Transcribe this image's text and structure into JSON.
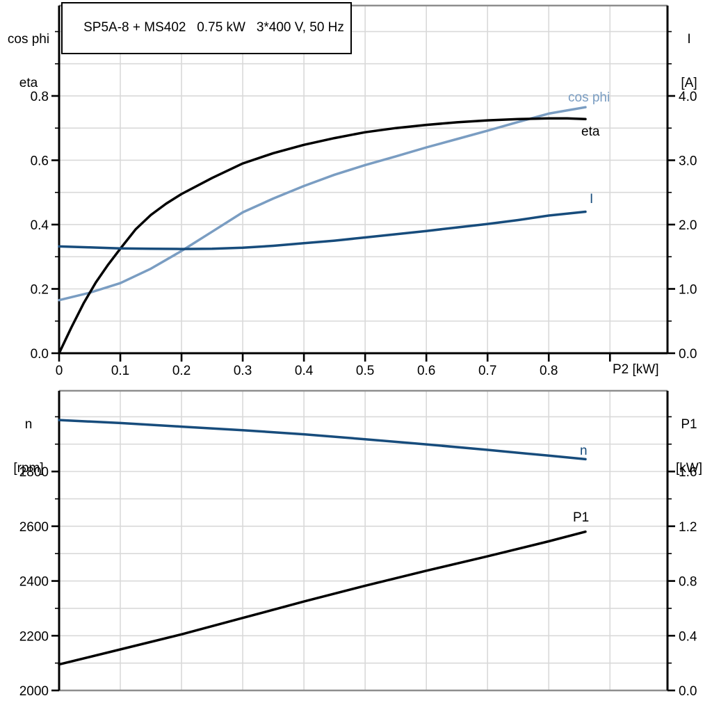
{
  "title": "SP5A-8 + MS402   0.75 kW   3*400 V, 50 Hz",
  "colors": {
    "black": "#000000",
    "light_blue": "#7a9dc2",
    "dark_blue": "#174c7c",
    "grid": "#d9d9d9",
    "frame": "#8e8e8e",
    "background": "#ffffff"
  },
  "chart_data": [
    {
      "type": "line",
      "id": "electrical-curves",
      "xlabel": "P2 [kW]",
      "xlim": [
        0,
        0.994
      ],
      "x_grid_values": [
        0.1,
        0.2,
        0.3,
        0.4,
        0.5,
        0.6,
        0.7,
        0.8,
        0.9
      ],
      "x_tick_values": [
        0,
        0.1,
        0.2,
        0.3,
        0.4,
        0.5,
        0.6,
        0.7,
        0.8,
        0.9
      ],
      "x_tick_labels": [
        "0",
        "0.1",
        "0.2",
        "0.3",
        "0.4",
        "0.5",
        "0.6",
        "0.7",
        "0.8",
        ""
      ],
      "left_axis": {
        "label_lines": [
          "cos phi",
          "eta"
        ],
        "range": [
          0,
          1.081
        ],
        "tick_values": [
          0,
          0.2,
          0.4,
          0.6,
          0.8
        ],
        "tick_labels": [
          "0.0",
          "0.2",
          "0.4",
          "0.6",
          "0.8"
        ],
        "minor_tick_values": [
          0.1,
          0.3,
          0.5,
          0.7,
          0.9,
          1.0
        ],
        "grid_values": [
          0.1,
          0.2,
          0.3,
          0.4,
          0.5,
          0.6,
          0.7,
          0.8,
          0.9,
          1.0
        ]
      },
      "right_axis": {
        "label_lines": [
          "I",
          "[A]"
        ],
        "range": [
          0,
          5.405
        ],
        "tick_values": [
          0,
          1,
          2,
          3,
          4
        ],
        "tick_labels": [
          "0.0",
          "1.0",
          "2.0",
          "3.0",
          "4.0"
        ],
        "minor_tick_values": [
          0.5,
          1.5,
          2.5,
          3.5,
          4.5,
          5.0
        ]
      },
      "grid": true,
      "legend_position": "inline-labels",
      "series": [
        {
          "name": "cos phi",
          "axis": "left",
          "color_key": "light_blue",
          "points": [
            [
              0,
              0.165
            ],
            [
              0.05,
              0.188
            ],
            [
              0.1,
              0.218
            ],
            [
              0.15,
              0.263
            ],
            [
              0.2,
              0.318
            ],
            [
              0.25,
              0.378
            ],
            [
              0.3,
              0.438
            ],
            [
              0.35,
              0.481
            ],
            [
              0.4,
              0.52
            ],
            [
              0.45,
              0.555
            ],
            [
              0.5,
              0.585
            ],
            [
              0.55,
              0.612
            ],
            [
              0.6,
              0.64
            ],
            [
              0.65,
              0.666
            ],
            [
              0.7,
              0.692
            ],
            [
              0.75,
              0.719
            ],
            [
              0.8,
              0.745
            ],
            [
              0.86,
              0.765
            ]
          ]
        },
        {
          "name": "eta",
          "axis": "left",
          "color_key": "black",
          "points": [
            [
              0,
              0
            ],
            [
              0.02,
              0.08
            ],
            [
              0.04,
              0.155
            ],
            [
              0.06,
              0.22
            ],
            [
              0.08,
              0.275
            ],
            [
              0.1,
              0.325
            ],
            [
              0.125,
              0.385
            ],
            [
              0.15,
              0.43
            ],
            [
              0.175,
              0.465
            ],
            [
              0.2,
              0.495
            ],
            [
              0.25,
              0.545
            ],
            [
              0.3,
              0.59
            ],
            [
              0.35,
              0.622
            ],
            [
              0.4,
              0.648
            ],
            [
              0.45,
              0.669
            ],
            [
              0.5,
              0.687
            ],
            [
              0.55,
              0.7
            ],
            [
              0.6,
              0.71
            ],
            [
              0.65,
              0.718
            ],
            [
              0.7,
              0.724
            ],
            [
              0.75,
              0.728
            ],
            [
              0.8,
              0.73
            ],
            [
              0.83,
              0.73
            ],
            [
              0.86,
              0.728
            ]
          ]
        },
        {
          "name": "I",
          "axis": "right",
          "color_key": "dark_blue",
          "points": [
            [
              0,
              1.66
            ],
            [
              0.05,
              1.645
            ],
            [
              0.1,
              1.63
            ],
            [
              0.15,
              1.625
            ],
            [
              0.2,
              1.62
            ],
            [
              0.25,
              1.625
            ],
            [
              0.3,
              1.64
            ],
            [
              0.35,
              1.67
            ],
            [
              0.4,
              1.71
            ],
            [
              0.45,
              1.75
            ],
            [
              0.5,
              1.8
            ],
            [
              0.55,
              1.85
            ],
            [
              0.6,
              1.9
            ],
            [
              0.65,
              1.955
            ],
            [
              0.7,
              2.01
            ],
            [
              0.75,
              2.07
            ],
            [
              0.8,
              2.14
            ],
            [
              0.86,
              2.2
            ]
          ]
        }
      ]
    },
    {
      "type": "line",
      "id": "mechanical-curves",
      "xlabel": "",
      "xlim": [
        0,
        0.994
      ],
      "x_grid_values": [
        0.1,
        0.2,
        0.3,
        0.4,
        0.5,
        0.6,
        0.7,
        0.8,
        0.9
      ],
      "x_tick_values": [],
      "x_tick_labels": [],
      "left_axis": {
        "label_lines": [
          "n",
          "[rpm]"
        ],
        "range": [
          2000,
          3095
        ],
        "tick_values": [
          2000,
          2200,
          2400,
          2600,
          2800
        ],
        "tick_labels": [
          "2000",
          "2200",
          "2400",
          "2600",
          "2800"
        ],
        "minor_tick_values": [
          2100,
          2300,
          2500,
          2700,
          2900,
          3000
        ],
        "grid_values": [
          2100,
          2200,
          2300,
          2400,
          2500,
          2600,
          2700,
          2800,
          2900,
          3000
        ]
      },
      "right_axis": {
        "label_lines": [
          "P1",
          "[kW]"
        ],
        "range": [
          0,
          2.19
        ],
        "tick_values": [
          0,
          0.4,
          0.8,
          1.2,
          1.6
        ],
        "tick_labels": [
          "0.0",
          "0.4",
          "0.8",
          "1.2",
          "1.6"
        ],
        "minor_tick_values": [
          0.2,
          0.6,
          1.0,
          1.4,
          1.8,
          2.0
        ]
      },
      "grid": true,
      "legend_position": "inline-labels",
      "series": [
        {
          "name": "n",
          "axis": "left",
          "color_key": "dark_blue",
          "points": [
            [
              0,
              2988
            ],
            [
              0.1,
              2977
            ],
            [
              0.2,
              2964
            ],
            [
              0.3,
              2951
            ],
            [
              0.4,
              2936
            ],
            [
              0.5,
              2918
            ],
            [
              0.6,
              2899
            ],
            [
              0.7,
              2879
            ],
            [
              0.8,
              2858
            ],
            [
              0.86,
              2845
            ]
          ]
        },
        {
          "name": "P1",
          "axis": "right",
          "color_key": "black",
          "points": [
            [
              0,
              0.19
            ],
            [
              0.1,
              0.3
            ],
            [
              0.2,
              0.41
            ],
            [
              0.3,
              0.53
            ],
            [
              0.4,
              0.65
            ],
            [
              0.5,
              0.765
            ],
            [
              0.6,
              0.875
            ],
            [
              0.7,
              0.98
            ],
            [
              0.8,
              1.09
            ],
            [
              0.86,
              1.16
            ]
          ]
        }
      ]
    }
  ]
}
